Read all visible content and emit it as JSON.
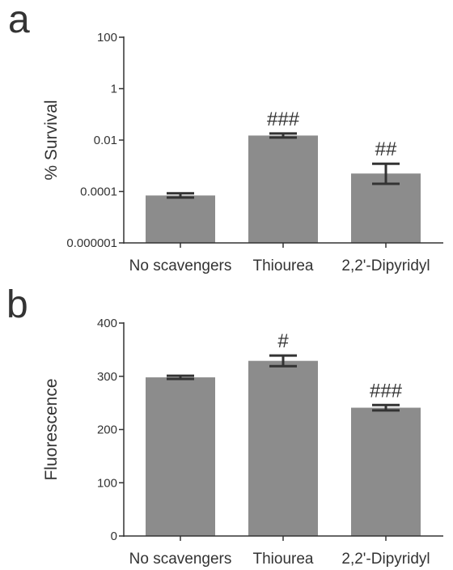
{
  "chart_data": [
    {
      "panel": "a",
      "type": "bar",
      "categories": [
        "No scavengers",
        "Thiourea",
        "2,2'-Dipyridyl"
      ],
      "series": [
        {
          "values": [
            7e-05,
            0.015,
            0.0005
          ],
          "error_low": [
            5.8e-05,
            0.0125,
            0.0002
          ],
          "error_high": [
            8.5e-05,
            0.018,
            0.0012
          ],
          "significance": [
            "",
            "###",
            "##"
          ]
        }
      ],
      "ylabel": "% Survival",
      "yscale": "log",
      "ylim": [
        1e-06,
        100
      ],
      "yticks": [
        1e-06,
        0.0001,
        0.01,
        1,
        100
      ],
      "ytick_labels": [
        "0.000001",
        "0.0001",
        "0.01",
        "1",
        "100"
      ],
      "bar_color": "#8c8c8c",
      "grid": false
    },
    {
      "panel": "b",
      "type": "bar",
      "categories": [
        "No scavengers",
        "Thiourea",
        "2,2'-Dipyridyl"
      ],
      "series": [
        {
          "values": [
            298,
            329,
            241
          ],
          "error_low": [
            295,
            319,
            236
          ],
          "error_high": [
            301,
            339,
            246
          ],
          "significance": [
            "",
            "#",
            "###"
          ]
        }
      ],
      "ylabel": "Fluorescence",
      "yscale": "linear",
      "ylim": [
        0,
        400
      ],
      "yticks": [
        0,
        100,
        200,
        300,
        400
      ],
      "ytick_labels": [
        "0",
        "100",
        "200",
        "300",
        "400"
      ],
      "bar_color": "#8c8c8c",
      "grid": false
    }
  ],
  "colors": {
    "bar": "#8c8c8c",
    "axis": "#333333",
    "error": "#333333"
  }
}
